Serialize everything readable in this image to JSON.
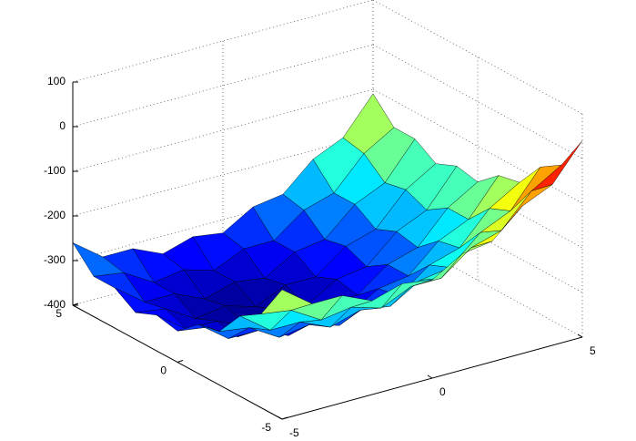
{
  "chart_data": {
    "type": "surface",
    "x": [
      -5,
      -4,
      -3,
      -2,
      -1,
      0,
      1,
      2,
      3,
      4,
      5
    ],
    "y": [
      -5,
      -4,
      -3,
      -2,
      -1,
      0,
      1,
      2,
      3,
      4,
      5
    ],
    "z": [
      [
        -110,
        -160,
        -160,
        -190,
        -170,
        -180,
        -140,
        -130,
        -70,
        -40,
        40
      ],
      [
        -190,
        -200,
        -240,
        -230,
        -250,
        -220,
        -220,
        -170,
        -150,
        -80,
        -40
      ],
      [
        -220,
        -270,
        -270,
        -300,
        -280,
        -290,
        -250,
        -240,
        -180,
        -150,
        -70
      ],
      [
        -280,
        -290,
        -330,
        -320,
        -340,
        -310,
        -310,
        -260,
        -240,
        -170,
        -130
      ],
      [
        -290,
        -340,
        -340,
        -370,
        -350,
        -360,
        -320,
        -310,
        -250,
        -220,
        -140
      ],
      [
        -330,
        -340,
        -380,
        -370,
        -390,
        -360,
        -360,
        -310,
        -290,
        -220,
        -180
      ],
      [
        -320,
        -370,
        -370,
        -400,
        -380,
        -390,
        -350,
        -340,
        -280,
        -250,
        -170
      ],
      [
        -340,
        -350,
        -390,
        -380,
        -400,
        -370,
        -370,
        -320,
        -300,
        -230,
        -190
      ],
      [
        -310,
        -360,
        -360,
        -390,
        -370,
        -380,
        -340,
        -330,
        -270,
        -240,
        -160
      ],
      [
        -310,
        -320,
        -360,
        -350,
        -370,
        -340,
        -340,
        -290,
        -270,
        -200,
        -160
      ],
      [
        -260,
        -310,
        -310,
        -340,
        -320,
        -330,
        -290,
        -280,
        -220,
        -190,
        -110
      ]
    ],
    "xlim": [
      -5,
      5
    ],
    "ylim": [
      -5,
      5
    ],
    "zlim": [
      -400,
      100
    ],
    "xticks": [
      -5,
      0,
      5
    ],
    "yticks": [
      -5,
      0,
      5
    ],
    "zticks": [
      -400,
      -300,
      -200,
      -100,
      0,
      100
    ],
    "grid": true,
    "colormap": "jet"
  }
}
